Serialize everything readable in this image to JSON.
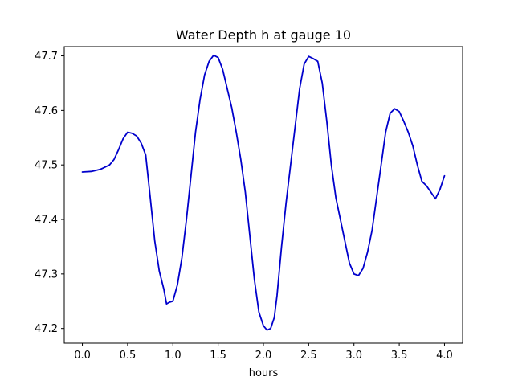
{
  "chart_data": {
    "type": "line",
    "title": "Water Depth h at gauge 10",
    "xlabel": "hours",
    "ylabel": "",
    "xlim": [
      -0.2,
      4.2
    ],
    "ylim": [
      47.173,
      47.717
    ],
    "grid": false,
    "legend": "none",
    "x_ticks": [
      0.0,
      0.5,
      1.0,
      1.5,
      2.0,
      2.5,
      3.0,
      3.5,
      4.0
    ],
    "x_tick_labels": [
      "0.0",
      "0.5",
      "1.0",
      "1.5",
      "2.0",
      "2.5",
      "3.0",
      "3.5",
      "4.0"
    ],
    "y_ticks": [
      47.2,
      47.3,
      47.4,
      47.5,
      47.6,
      47.7
    ],
    "y_tick_labels": [
      "47.2",
      "47.3",
      "47.4",
      "47.5",
      "47.6",
      "47.7"
    ],
    "series": [
      {
        "color": "#0000cc",
        "x": [
          0.0,
          0.1,
          0.2,
          0.3,
          0.35,
          0.4,
          0.45,
          0.5,
          0.55,
          0.6,
          0.65,
          0.7,
          0.75,
          0.8,
          0.85,
          0.9,
          0.93,
          0.96,
          1.0,
          1.05,
          1.1,
          1.15,
          1.2,
          1.25,
          1.3,
          1.35,
          1.4,
          1.45,
          1.5,
          1.55,
          1.6,
          1.65,
          1.7,
          1.75,
          1.8,
          1.85,
          1.9,
          1.95,
          2.0,
          2.04,
          2.08,
          2.12,
          2.15,
          2.2,
          2.25,
          2.3,
          2.35,
          2.4,
          2.45,
          2.5,
          2.55,
          2.6,
          2.65,
          2.7,
          2.75,
          2.8,
          2.85,
          2.9,
          2.95,
          3.0,
          3.05,
          3.1,
          3.15,
          3.2,
          3.25,
          3.3,
          3.35,
          3.4,
          3.45,
          3.5,
          3.55,
          3.6,
          3.65,
          3.7,
          3.75,
          3.8,
          3.85,
          3.9,
          3.95,
          4.0
        ],
        "y": [
          47.487,
          47.488,
          47.492,
          47.5,
          47.51,
          47.528,
          47.548,
          47.56,
          47.558,
          47.553,
          47.54,
          47.518,
          47.44,
          47.36,
          47.305,
          47.272,
          47.245,
          47.248,
          47.25,
          47.28,
          47.33,
          47.4,
          47.48,
          47.56,
          47.62,
          47.665,
          47.69,
          47.701,
          47.697,
          47.675,
          47.64,
          47.605,
          47.56,
          47.51,
          47.45,
          47.37,
          47.29,
          47.23,
          47.205,
          47.197,
          47.2,
          47.22,
          47.26,
          47.35,
          47.43,
          47.5,
          47.57,
          47.64,
          47.685,
          47.699,
          47.695,
          47.69,
          47.65,
          47.58,
          47.5,
          47.44,
          47.4,
          47.36,
          47.32,
          47.3,
          47.297,
          47.31,
          47.34,
          47.38,
          47.44,
          47.5,
          47.56,
          47.595,
          47.603,
          47.598,
          47.58,
          47.56,
          47.535,
          47.5,
          47.47,
          47.462,
          47.45,
          47.438,
          47.455,
          47.48
        ]
      }
    ]
  }
}
